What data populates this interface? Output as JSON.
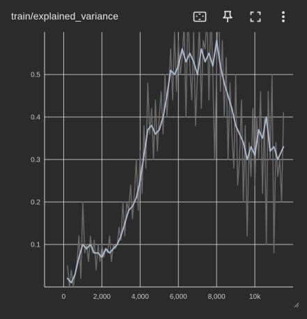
{
  "card": {
    "title": "train/explained_variance"
  },
  "toolbar": {
    "buttons": [
      {
        "icon": "fit-domain-icon"
      },
      {
        "icon": "pin-icon"
      },
      {
        "icon": "fullscreen-icon"
      },
      {
        "icon": "more-vert-icon"
      }
    ]
  },
  "colors": {
    "background": "#2b2b2b",
    "grid": "#d8d8d8",
    "raw_line": "#6a6a6a",
    "smoothed_line": "#a9b7c9",
    "text": "#c8c8c8"
  },
  "chart_data": {
    "type": "line",
    "x_ticks": [
      0,
      2000,
      4000,
      6000,
      8000,
      10000
    ],
    "x_tick_labels": [
      "0",
      "2,000",
      "4,000",
      "6,000",
      "8,000",
      "10k"
    ],
    "y_ticks": [
      0.1,
      0.2,
      0.3,
      0.4,
      0.5
    ],
    "y_tick_labels": [
      "0.1",
      "0.2",
      "0.3",
      "0.4",
      "0.5"
    ],
    "xlim": [
      -1000,
      12000
    ],
    "ylim": [
      0,
      0.6
    ],
    "series": [
      {
        "role": "raw",
        "x": [
          200,
          300,
          400,
          500,
          600,
          700,
          800,
          900,
          1000,
          1100,
          1200,
          1300,
          1400,
          1500,
          1600,
          1700,
          1800,
          1900,
          2000,
          2100,
          2200,
          2300,
          2400,
          2500,
          2600,
          2700,
          2800,
          2900,
          3000,
          3100,
          3200,
          3300,
          3400,
          3500,
          3600,
          3700,
          3800,
          3900,
          4000,
          4100,
          4200,
          4300,
          4400,
          4500,
          4600,
          4700,
          4800,
          4900,
          5000,
          5100,
          5200,
          5300,
          5400,
          5500,
          5600,
          5700,
          5800,
          5900,
          6000,
          6100,
          6200,
          6300,
          6400,
          6500,
          6600,
          6700,
          6800,
          6900,
          7000,
          7100,
          7200,
          7300,
          7400,
          7500,
          7600,
          7700,
          7800,
          7900,
          8000,
          8100,
          8200,
          8300,
          8400,
          8500,
          8600,
          8700,
          8800,
          8900,
          9000,
          9100,
          9200,
          9300,
          9400,
          9500,
          9600,
          9700,
          9800,
          9900,
          10000,
          10100,
          10200,
          10300,
          10400,
          10500,
          10600,
          10700,
          10800,
          10900,
          11000,
          11100,
          11200,
          11300,
          11400,
          11500
        ],
        "y": [
          0.05,
          0.0,
          0.04,
          0.0,
          0.03,
          0.06,
          0.12,
          0.02,
          0.2,
          0.08,
          0.1,
          0.06,
          0.12,
          0.08,
          0.11,
          0.04,
          0.1,
          0.06,
          0.1,
          0.07,
          0.09,
          0.08,
          0.12,
          0.06,
          0.1,
          0.09,
          0.1,
          0.14,
          0.11,
          0.2,
          0.12,
          0.2,
          0.18,
          0.24,
          0.16,
          0.22,
          0.3,
          0.18,
          0.32,
          0.22,
          0.38,
          0.28,
          0.48,
          0.36,
          0.42,
          0.3,
          0.44,
          0.32,
          0.4,
          0.46,
          0.36,
          0.5,
          0.4,
          0.48,
          0.56,
          0.44,
          0.6,
          0.46,
          0.58,
          0.5,
          0.54,
          0.62,
          0.4,
          0.66,
          0.52,
          0.44,
          0.6,
          0.38,
          0.5,
          0.62,
          0.42,
          0.58,
          0.56,
          0.64,
          0.44,
          0.66,
          0.5,
          0.3,
          0.52,
          0.7,
          0.46,
          0.58,
          0.4,
          0.54,
          0.3,
          0.48,
          0.36,
          0.28,
          0.5,
          0.24,
          0.3,
          0.44,
          0.2,
          0.38,
          0.12,
          0.34,
          0.26,
          0.42,
          0.24,
          0.4,
          0.3,
          0.46,
          0.22,
          0.4,
          0.1,
          0.46,
          0.3,
          0.5,
          0.08,
          0.34,
          0.26,
          0.3,
          0.2,
          0.41
        ],
        "color": "#6a6a6a"
      },
      {
        "role": "smoothed",
        "x": [
          200,
          400,
          600,
          800,
          1000,
          1200,
          1400,
          1600,
          1800,
          2000,
          2200,
          2400,
          2600,
          2800,
          3000,
          3200,
          3400,
          3600,
          3800,
          4000,
          4200,
          4400,
          4600,
          4800,
          5000,
          5200,
          5400,
          5600,
          5800,
          6000,
          6200,
          6400,
          6600,
          6800,
          7000,
          7200,
          7400,
          7600,
          7800,
          8000,
          8200,
          8400,
          8600,
          8800,
          9000,
          9200,
          9400,
          9600,
          9800,
          10000,
          10200,
          10400,
          10600,
          10800,
          11000,
          11200,
          11400,
          11500
        ],
        "y": [
          0.02,
          0.01,
          0.03,
          0.07,
          0.1,
          0.09,
          0.1,
          0.08,
          0.08,
          0.07,
          0.09,
          0.08,
          0.09,
          0.1,
          0.12,
          0.15,
          0.18,
          0.19,
          0.21,
          0.25,
          0.31,
          0.37,
          0.38,
          0.36,
          0.37,
          0.4,
          0.45,
          0.51,
          0.5,
          0.52,
          0.56,
          0.53,
          0.55,
          0.53,
          0.5,
          0.56,
          0.53,
          0.55,
          0.52,
          0.58,
          0.52,
          0.48,
          0.45,
          0.42,
          0.38,
          0.36,
          0.34,
          0.3,
          0.33,
          0.31,
          0.37,
          0.35,
          0.4,
          0.32,
          0.33,
          0.3,
          0.32,
          0.33
        ],
        "color": "#a9b7c9"
      }
    ]
  }
}
